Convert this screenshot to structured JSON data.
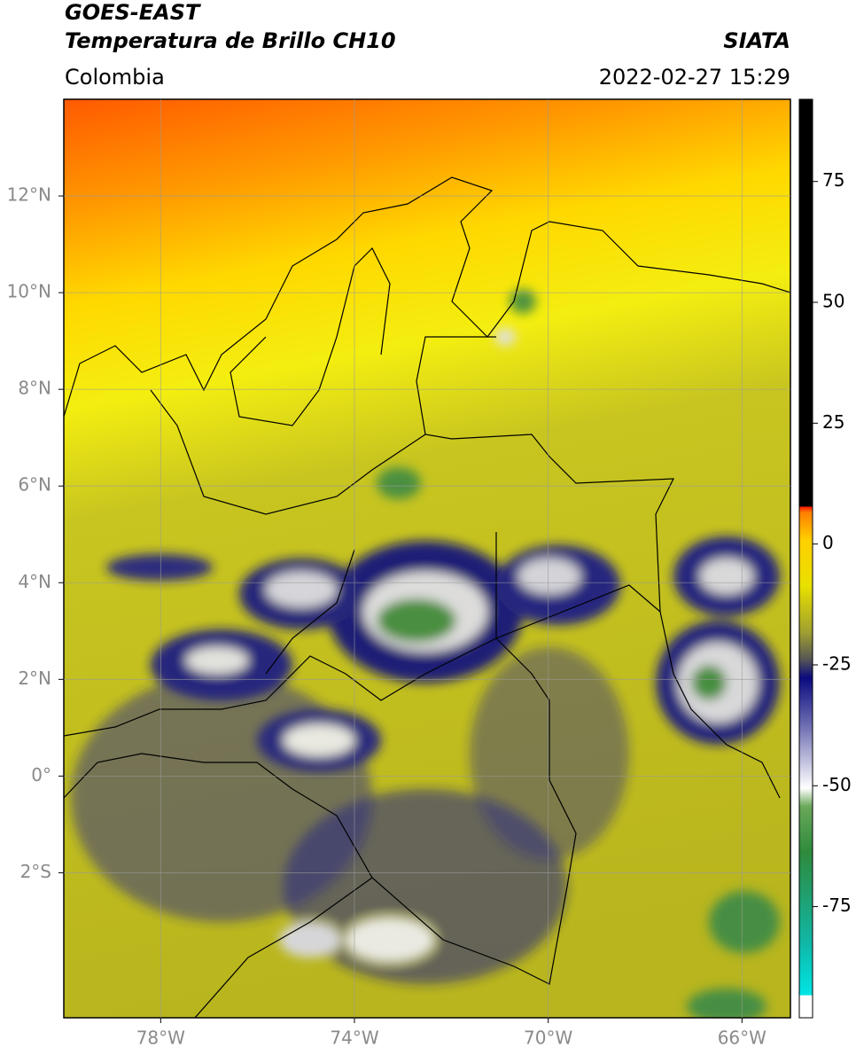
{
  "header": {
    "satellite": "GOES-EAST",
    "product": "Temperatura de Brillo CH10",
    "agency": "SIATA",
    "region": "Colombia",
    "datetime": "2022-02-27 15:29"
  },
  "map": {
    "xlim": [
      -80,
      -65
    ],
    "ylim": [
      -5,
      14
    ],
    "xticks": [
      {
        "value": -78,
        "label": "78°W"
      },
      {
        "value": -74,
        "label": "74°W"
      },
      {
        "value": -70,
        "label": "70°W"
      },
      {
        "value": -66,
        "label": "66°W"
      }
    ],
    "yticks": [
      {
        "value": -2,
        "label": "2°S"
      },
      {
        "value": 0,
        "label": "0°"
      },
      {
        "value": 2,
        "label": "2°N"
      },
      {
        "value": 4,
        "label": "4°N"
      },
      {
        "value": 6,
        "label": "6°N"
      },
      {
        "value": 8,
        "label": "8°N"
      },
      {
        "value": 10,
        "label": "10°N"
      },
      {
        "value": 12,
        "label": "12°N"
      }
    ],
    "grid": true
  },
  "colorbar": {
    "lim": [
      -98,
      92
    ],
    "ticks": [
      -75,
      -50,
      -25,
      0,
      25,
      50,
      75
    ]
  }
}
